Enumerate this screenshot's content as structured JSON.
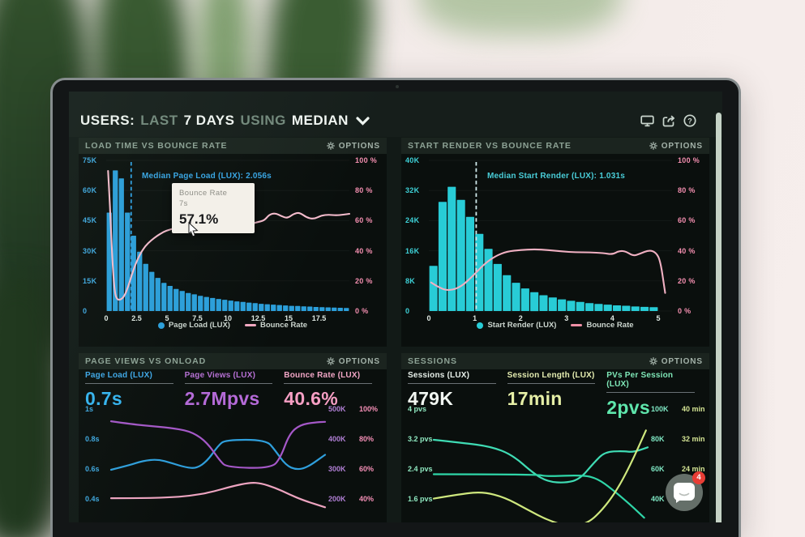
{
  "header": {
    "users": "USERS:",
    "last": "LAST",
    "days": "7 DAYS",
    "using": "USING",
    "median": "MEDIAN"
  },
  "topbar_icons": [
    "display-icon",
    "share-icon",
    "help-icon"
  ],
  "chat": {
    "badge": "4"
  },
  "panels": {
    "load_time": {
      "title": "LOAD TIME VS BOUNCE RATE",
      "options": "OPTIONS",
      "annotation": "Median Page Load (LUX): 2.056s",
      "tooltip": {
        "title": "Bounce Rate",
        "time": "7s",
        "value": "57.1%"
      },
      "legend": [
        {
          "label": "Page Load (LUX)"
        },
        {
          "label": "Bounce Rate"
        }
      ]
    },
    "start_render": {
      "title": "START RENDER VS BOUNCE RATE",
      "options": "OPTIONS",
      "annotation": "Median Start Render (LUX): 1.031s",
      "legend": [
        {
          "label": "Start Render (LUX)"
        },
        {
          "label": "Bounce Rate"
        }
      ]
    },
    "page_views": {
      "title": "PAGE VIEWS VS ONLOAD",
      "options": "OPTIONS",
      "metrics": [
        {
          "label": "Page Load (LUX)",
          "value": "0.7s"
        },
        {
          "label": "Page Views (LUX)",
          "value": "2.7Mpvs"
        },
        {
          "label": "Bounce Rate (LUX)",
          "value": "40.6%"
        }
      ]
    },
    "sessions": {
      "title": "SESSIONS",
      "options": "OPTIONS",
      "metrics": [
        {
          "label": "Sessions (LUX)",
          "value": "479K"
        },
        {
          "label": "Session Length (LUX)",
          "value": "17min"
        },
        {
          "label": "PVs Per Session (LUX)",
          "value": "2pvs"
        }
      ]
    }
  },
  "chart_data": [
    {
      "id": "load_time",
      "type": "bar",
      "title": "LOAD TIME VS BOUNCE RATE",
      "x_range": [
        0,
        20
      ],
      "x_tick_values": [
        0,
        2.5,
        5,
        7.5,
        10,
        12.5,
        15,
        17.5
      ],
      "x_tick_labels": [
        "0",
        "2.5",
        "5",
        "7.5",
        "10",
        "12.5",
        "15",
        "17.5"
      ],
      "left_ticks": [
        "75K",
        "60K",
        "45K",
        "30K",
        "15K",
        "0"
      ],
      "left_color": "#3fa8e0",
      "right_ticks": [
        "100 %",
        "80 %",
        "60 %",
        "40 %",
        "20 %",
        "0 %"
      ],
      "right_color": "#f48fb0",
      "bar_max_k": 75,
      "bars": {
        "name": "Page Load (LUX)",
        "color": "#2b9fdb",
        "bin_start": 0,
        "bin_width": 0.5,
        "values_k": [
          49,
          70,
          66,
          49,
          37.5,
          29.5,
          23.5,
          19.5,
          16.5,
          14,
          12.5,
          11,
          10,
          9,
          8.3,
          7.6,
          7,
          6.5,
          6,
          5.6,
          5.2,
          4.8,
          4.5,
          4.2,
          3.9,
          3.6,
          3.4,
          3.2,
          3,
          2.8,
          2.6,
          2.5,
          2.3,
          2.2,
          2,
          1.9,
          1.8,
          1.7,
          1.6,
          1.5
        ]
      },
      "line": {
        "name": "Bounce Rate",
        "color": "#f5bccd",
        "unit": "%",
        "points": [
          [
            0.15,
            93
          ],
          [
            0.3,
            72
          ],
          [
            0.5,
            34
          ],
          [
            0.7,
            12
          ],
          [
            0.9,
            7.5
          ],
          [
            1.2,
            7.5
          ],
          [
            1.5,
            10
          ],
          [
            1.8,
            16
          ],
          [
            2.1,
            24
          ],
          [
            2.4,
            31
          ],
          [
            2.8,
            38
          ],
          [
            3.2,
            43
          ],
          [
            3.7,
            47
          ],
          [
            4.2,
            50
          ],
          [
            4.7,
            52.5
          ],
          [
            5.2,
            54
          ],
          [
            5.8,
            55.5
          ],
          [
            6.4,
            56.5
          ],
          [
            7,
            57.1
          ],
          [
            7.6,
            57
          ],
          [
            8.2,
            57.2
          ],
          [
            8.8,
            57
          ],
          [
            9.4,
            56.2
          ],
          [
            10,
            55.2
          ],
          [
            10.6,
            55
          ],
          [
            11.2,
            56
          ],
          [
            11.8,
            57.5
          ],
          [
            12.4,
            59
          ],
          [
            13,
            60
          ],
          [
            13.4,
            64
          ],
          [
            13.9,
            65
          ],
          [
            14.4,
            63
          ],
          [
            14.9,
            61.5
          ],
          [
            15.4,
            64.5
          ],
          [
            15.9,
            65.5
          ],
          [
            16.5,
            62
          ],
          [
            17.1,
            61
          ],
          [
            17.7,
            63.5
          ],
          [
            18.3,
            64
          ],
          [
            18.9,
            63.5
          ],
          [
            19.5,
            64
          ],
          [
            20,
            64.5
          ]
        ]
      },
      "median": {
        "x": 2.056,
        "label": "Median Page Load (LUX): 2.056s",
        "color": "#2e9fe2"
      }
    },
    {
      "id": "start_render",
      "type": "bar",
      "title": "START RENDER VS BOUNCE RATE",
      "x_range": [
        0,
        5.3
      ],
      "x_tick_values": [
        0,
        1,
        2,
        3,
        4,
        5
      ],
      "x_tick_labels": [
        "0",
        "1",
        "2",
        "3",
        "4",
        "5"
      ],
      "left_ticks": [
        "40K",
        "32K",
        "24K",
        "16K",
        "8K",
        "0"
      ],
      "left_color": "#3ed2d8",
      "right_ticks": [
        "100 %",
        "80 %",
        "60 %",
        "40 %",
        "20 %",
        "0 %"
      ],
      "right_color": "#f48fb0",
      "bar_max_k": 40,
      "bars": {
        "name": "Start Render (LUX)",
        "color": "#28ccd6",
        "bin_start": 0,
        "bin_width": 0.2,
        "values_k": [
          12,
          29,
          33,
          29.5,
          25,
          20.5,
          16.5,
          12.5,
          9.5,
          7.5,
          6,
          5,
          4.2,
          3.6,
          3.1,
          2.7,
          2.4,
          2.1,
          1.9,
          1.7,
          1.5,
          1.4,
          1.2,
          1.1,
          1
        ]
      },
      "line": {
        "name": "Bounce Rate",
        "color": "#f0b0c2",
        "unit": "%",
        "points": [
          [
            0.05,
            19
          ],
          [
            0.25,
            15
          ],
          [
            0.45,
            13.5
          ],
          [
            0.7,
            16
          ],
          [
            0.95,
            23
          ],
          [
            1.2,
            31
          ],
          [
            1.45,
            36.5
          ],
          [
            1.7,
            39.5
          ],
          [
            2,
            40.5
          ],
          [
            2.3,
            41
          ],
          [
            2.6,
            40.5
          ],
          [
            2.9,
            39.5
          ],
          [
            3.2,
            39
          ],
          [
            3.5,
            39
          ],
          [
            3.8,
            38.5
          ],
          [
            4,
            37.5
          ],
          [
            4.15,
            40
          ],
          [
            4.3,
            39.5
          ],
          [
            4.45,
            36.5
          ],
          [
            4.6,
            38
          ],
          [
            4.8,
            40.5
          ],
          [
            4.95,
            39
          ],
          [
            5.05,
            33
          ],
          [
            5.15,
            12
          ]
        ]
      },
      "median": {
        "x": 1.031,
        "label": "Median Start Render (LUX): 1.031s",
        "color": "#cfe8ea"
      }
    },
    {
      "id": "page_views",
      "type": "line",
      "title": "PAGE VIEWS VS ONLOAD",
      "x_range": [
        0,
        6
      ],
      "left_ticks": [
        "1s",
        "0.8s",
        "0.6s",
        "0.4s"
      ],
      "left_color": "#3fa8e0",
      "right_ticks": [
        [
          "500K",
          "100%"
        ],
        [
          "400K",
          "80%"
        ],
        [
          "300K",
          "60%"
        ],
        [
          "200K",
          "40%"
        ]
      ],
      "right_colors": [
        "#b07fd4",
        "#f48fb6"
      ],
      "axes": {
        "seconds": {
          "v_row0": 1.0,
          "v_row3": 0.4
        },
        "views_k": {
          "v_row0": 500,
          "v_row3": 200
        },
        "pct": {
          "v_row0": 100,
          "v_row3": 40
        }
      },
      "series": [
        {
          "name": "Page Load (LUX)",
          "axis": "seconds",
          "color": "#2f9fdc",
          "points": [
            [
              0,
              0.6
            ],
            [
              0.5,
              0.63
            ],
            [
              0.9,
              0.66
            ],
            [
              1.3,
              0.67
            ],
            [
              1.7,
              0.645
            ],
            [
              2.1,
              0.615
            ],
            [
              2.4,
              0.61
            ],
            [
              2.7,
              0.66
            ],
            [
              3.0,
              0.76
            ],
            [
              3.2,
              0.8
            ],
            [
              4.35,
              0.8
            ],
            [
              4.6,
              0.73
            ],
            [
              4.9,
              0.63
            ],
            [
              5.2,
              0.6
            ],
            [
              5.5,
              0.615
            ],
            [
              6,
              0.7
            ]
          ]
        },
        {
          "name": "Page Views (LUX)",
          "axis": "views_k",
          "color": "#a558c8",
          "points": [
            [
              0,
              462
            ],
            [
              0.6,
              452
            ],
            [
              1.2,
              445
            ],
            [
              1.8,
              438
            ],
            [
              2.3,
              425
            ],
            [
              2.7,
              390
            ],
            [
              3.05,
              330
            ],
            [
              3.25,
              308
            ],
            [
              4.5,
              305
            ],
            [
              4.75,
              340
            ],
            [
              5.0,
              420
            ],
            [
              5.3,
              450
            ],
            [
              5.7,
              458
            ],
            [
              6,
              460
            ]
          ]
        },
        {
          "name": "Bounce Rate (LUX)",
          "axis": "pct",
          "color": "#eda4c0",
          "points": [
            [
              0,
              41
            ],
            [
              0.8,
              41
            ],
            [
              1.6,
              41.5
            ],
            [
              2.2,
              42.5
            ],
            [
              2.8,
              45
            ],
            [
              3.4,
              49
            ],
            [
              3.9,
              51.5
            ],
            [
              4.2,
              51
            ],
            [
              4.6,
              48
            ],
            [
              5.0,
              43.5
            ],
            [
              5.4,
              39.5
            ],
            [
              6,
              35
            ]
          ]
        }
      ]
    },
    {
      "id": "sessions",
      "type": "line",
      "title": "SESSIONS",
      "x_range": [
        0,
        6
      ],
      "left_ticks": [
        "4 pvs",
        "3.2 pvs",
        "2.4 pvs",
        "1.6 pvs"
      ],
      "left_color": "#8fe8c0",
      "right_ticks": [
        [
          "100K",
          "40 min"
        ],
        [
          "80K",
          "32 min"
        ],
        [
          "60K",
          "24 min"
        ],
        [
          "40K",
          ""
        ]
      ],
      "right_colors": [
        "#7fe8c4",
        "#d4e494"
      ],
      "axes": {
        "pvs": {
          "v_row0": 4,
          "v_row3": 1.6
        },
        "sessions_k": {
          "v_row0": 100,
          "v_row3": 40
        },
        "minutes": {
          "v_row0": 40,
          "v_row3": 16
        }
      },
      "series": [
        {
          "name": "PVs Per Session (LUX)",
          "axis": "pvs",
          "color": "#3fdcb4",
          "points": [
            [
              0,
              3.2
            ],
            [
              0.8,
              3.12
            ],
            [
              1.6,
              3.02
            ],
            [
              2.2,
              2.8
            ],
            [
              2.8,
              2.3
            ],
            [
              3.2,
              2.08
            ],
            [
              3.7,
              2.05
            ],
            [
              4.1,
              2.15
            ],
            [
              4.5,
              2.6
            ],
            [
              4.8,
              2.88
            ],
            [
              5.3,
              2.9
            ],
            [
              5.6,
              2.87
            ],
            [
              6,
              3.0
            ]
          ]
        },
        {
          "name": "Sessions (LUX)",
          "axis": "sessions_k",
          "color": "#2fd6a8",
          "points": [
            [
              0,
              57
            ],
            [
              2.9,
              57
            ],
            [
              3.15,
              55.5
            ],
            [
              4.2,
              56.5
            ],
            [
              4.6,
              54
            ],
            [
              5,
              47
            ],
            [
              5.5,
              37
            ],
            [
              5.9,
              28
            ]
          ]
        },
        {
          "name": "Session Length (LUX)",
          "axis": "minutes",
          "color": "#cfe87e",
          "points": [
            [
              0,
              16.3
            ],
            [
              0.8,
              17.6
            ],
            [
              1.4,
              18.1
            ],
            [
              2.0,
              16.6
            ],
            [
              2.6,
              13.5
            ],
            [
              3.2,
              10.5
            ],
            [
              3.8,
              8.8
            ],
            [
              4.3,
              9.6
            ],
            [
              4.7,
              13
            ],
            [
              5.1,
              18
            ],
            [
              5.5,
              25
            ],
            [
              5.95,
              34.5
            ]
          ]
        }
      ]
    }
  ]
}
